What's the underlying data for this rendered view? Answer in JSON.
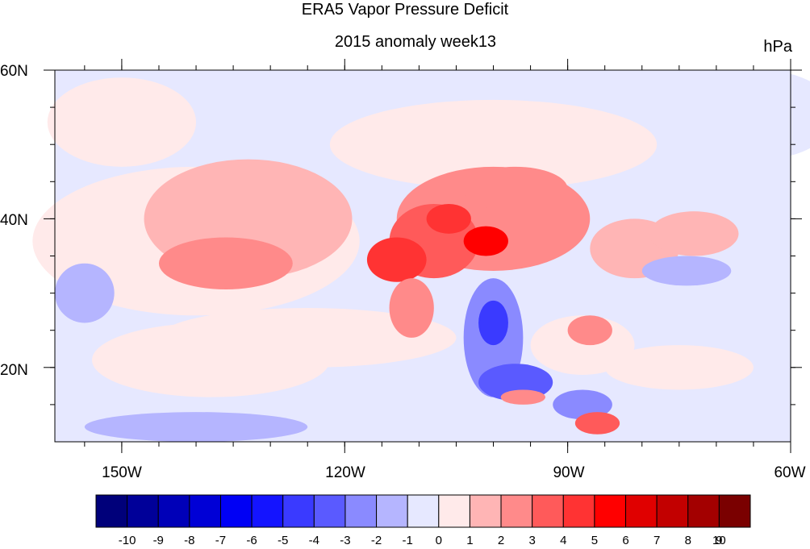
{
  "title": "ERA5 Vapor Pressure Deficit",
  "subtitle": "2015 anomaly week13",
  "units": "hPa",
  "axes": {
    "lat_labels": [
      "60N",
      "40N",
      "20N"
    ],
    "lon_labels": [
      "150W",
      "120W",
      "90W",
      "60W"
    ],
    "lat_range": [
      10,
      60
    ],
    "lon_range": [
      -159,
      -60
    ]
  },
  "colorbar": {
    "labels": [
      "-10",
      "-9",
      "-8",
      "-7",
      "-6",
      "-5",
      "-4",
      "-3",
      "-2",
      "-1",
      "0",
      "1",
      "2",
      "3",
      "4",
      "5",
      "6",
      "7",
      "8",
      "9",
      "10"
    ],
    "colors": [
      "#00007a",
      "#000099",
      "#0000b8",
      "#0000d6",
      "#0000f5",
      "#1414ff",
      "#3a3aff",
      "#5a5aff",
      "#8a8aff",
      "#b5b5ff",
      "#e6e8ff",
      "#ffeaea",
      "#ffb5b5",
      "#ff8a8a",
      "#ff5a5a",
      "#ff3333",
      "#ff0000",
      "#e00000",
      "#c20000",
      "#a30000",
      "#7a0000"
    ]
  },
  "chart_data": {
    "type": "heatmap",
    "title": "ERA5 Vapor Pressure Deficit",
    "subtitle": "2015 anomaly week13",
    "units": "hPa",
    "levels": [
      -10,
      -9,
      -8,
      -7,
      -6,
      -5,
      -4,
      -3,
      -2,
      -1,
      0,
      1,
      2,
      3,
      4,
      5,
      6,
      7,
      8,
      9,
      10
    ],
    "background_level": -0.5,
    "regions": [
      {
        "lon": -140,
        "lat": 37,
        "rlon": 22,
        "rlat": 10,
        "value": 0.5
      },
      {
        "lon": -133,
        "lat": 40,
        "rlon": 14,
        "rlat": 8,
        "value": 1.5
      },
      {
        "lon": -136,
        "lat": 34,
        "rlon": 9,
        "rlat": 3.5,
        "value": 2.5
      },
      {
        "lon": -125,
        "lat": 24,
        "rlon": 20,
        "rlat": 4,
        "value": 0.5
      },
      {
        "lon": -138,
        "lat": 21,
        "rlon": 16,
        "rlat": 5,
        "value": 0.5
      },
      {
        "lon": -150,
        "lat": 53,
        "rlon": 10,
        "rlat": 6,
        "value": 0.5
      },
      {
        "lon": -100,
        "lat": 50,
        "rlon": 22,
        "rlat": 6,
        "value": 0.5
      },
      {
        "lon": -100,
        "lat": 40,
        "rlon": 13,
        "rlat": 7,
        "value": 2.5
      },
      {
        "lon": -108,
        "lat": 37,
        "rlon": 6,
        "rlat": 5,
        "value": 3.5
      },
      {
        "lon": -113,
        "lat": 34.5,
        "rlon": 4,
        "rlat": 3,
        "value": 4.5
      },
      {
        "lon": -101,
        "lat": 37,
        "rlon": 3,
        "rlat": 2,
        "value": 5.5
      },
      {
        "lon": -106,
        "lat": 40,
        "rlon": 3,
        "rlat": 2,
        "value": 4.5
      },
      {
        "lon": -97,
        "lat": 44,
        "rlon": 7,
        "rlat": 3,
        "value": 2.5
      },
      {
        "lon": -111,
        "lat": 28,
        "rlon": 3,
        "rlat": 4,
        "value": 2.5
      },
      {
        "lon": -81,
        "lat": 36,
        "rlon": 6,
        "rlat": 4,
        "value": 1.5
      },
      {
        "lon": -73,
        "lat": 38,
        "rlon": 6,
        "rlat": 3,
        "value": 1.5
      },
      {
        "lon": -88,
        "lat": 23,
        "rlon": 7,
        "rlat": 4,
        "value": 0.5
      },
      {
        "lon": -87,
        "lat": 25,
        "rlon": 3,
        "rlat": 2,
        "value": 2.5
      },
      {
        "lon": -75,
        "lat": 20,
        "rlon": 10,
        "rlat": 3,
        "value": 0.5
      },
      {
        "lon": -100,
        "lat": 24,
        "rlon": 4,
        "rlat": 8,
        "value": -2.5
      },
      {
        "lon": -100,
        "lat": 26,
        "rlon": 2,
        "rlat": 3,
        "value": -4.5
      },
      {
        "lon": -97,
        "lat": 18,
        "rlon": 5,
        "rlat": 2.5,
        "value": -3.5
      },
      {
        "lon": -88,
        "lat": 15,
        "rlon": 4,
        "rlat": 2,
        "value": -2.5
      },
      {
        "lon": -96,
        "lat": 16,
        "rlon": 3,
        "rlat": 1,
        "value": 2.5
      },
      {
        "lon": -86,
        "lat": 12.5,
        "rlon": 3,
        "rlat": 1.5,
        "value": 3.5
      },
      {
        "lon": -64,
        "lat": 54,
        "rlon": 10,
        "rlat": 6,
        "value": -0.5
      },
      {
        "lon": -74,
        "lat": 33,
        "rlon": 6,
        "rlat": 2,
        "value": -1.5
      },
      {
        "lon": -140,
        "lat": 12,
        "rlon": 15,
        "rlat": 2,
        "value": -1.5
      },
      {
        "lon": -155,
        "lat": 30,
        "rlon": 4,
        "rlat": 4,
        "value": -1.5
      }
    ]
  }
}
